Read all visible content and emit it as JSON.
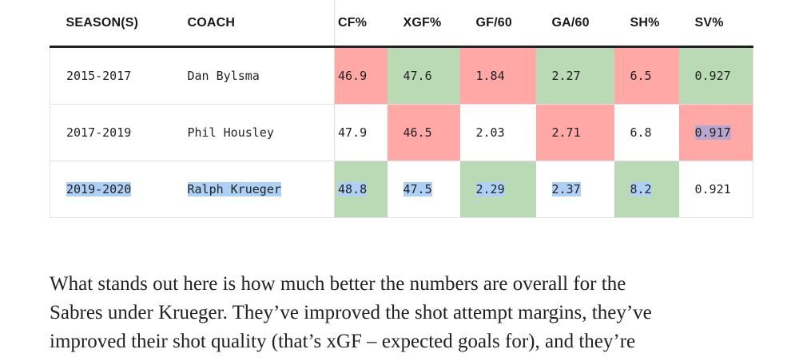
{
  "table": {
    "headers": [
      "SEASON(S)",
      "COACH",
      "CF%",
      "XGF%",
      "GF/60",
      "GA/60",
      "SH%",
      "SV%"
    ],
    "rows": [
      {
        "season": "2015-2017",
        "coach": "Dan Bylsma",
        "cells": [
          {
            "value": "46.9",
            "status": "bad"
          },
          {
            "value": "47.6",
            "status": "good"
          },
          {
            "value": "1.84",
            "status": "bad"
          },
          {
            "value": "2.27",
            "status": "good"
          },
          {
            "value": "6.5",
            "status": "bad"
          },
          {
            "value": "0.927",
            "status": "good"
          }
        ]
      },
      {
        "season": "2017-2019",
        "coach": "Phil Housley",
        "cells": [
          {
            "value": "47.9",
            "status": "neutral"
          },
          {
            "value": "46.5",
            "status": "bad"
          },
          {
            "value": "2.03",
            "status": "neutral"
          },
          {
            "value": "2.71",
            "status": "bad"
          },
          {
            "value": "6.8",
            "status": "neutral"
          },
          {
            "value": "0.917",
            "status": "bad"
          }
        ]
      },
      {
        "season": "2019-2020",
        "coach": "Ralph Krueger",
        "cells": [
          {
            "value": "48.8",
            "status": "good"
          },
          {
            "value": "47.5",
            "status": "neutral"
          },
          {
            "value": "2.29",
            "status": "good"
          },
          {
            "value": "2.37",
            "status": "neutral"
          },
          {
            "value": "8.2",
            "status": "good"
          },
          {
            "value": "0.921",
            "status": "neutral"
          }
        ]
      }
    ]
  },
  "paragraph": {
    "line1": "What stands out here is how much better the numbers are overall for the",
    "line2": "Sabres under Krueger. They’ve improved the shot attempt margins, they’ve",
    "line3": "improved their shot quality (that’s xGF  – expected goals for), and they’re"
  },
  "colors": {
    "bad": "#ffa8a6",
    "good": "#b9dab4",
    "selection": "#aed0f5",
    "selection_on_bad": "#b7a6cf"
  }
}
